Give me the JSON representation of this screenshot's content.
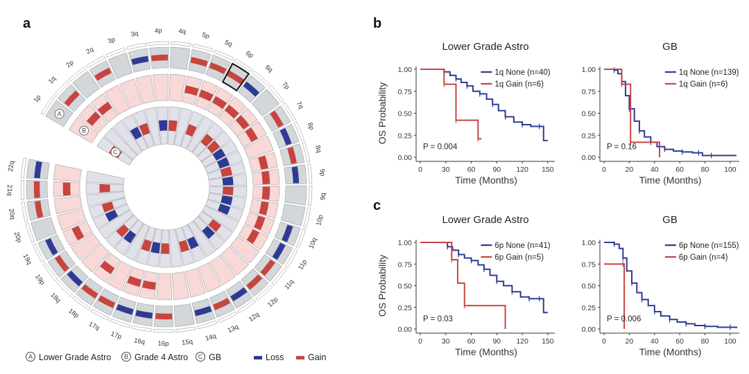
{
  "panels": {
    "a": "a",
    "b": "b",
    "c": "c"
  },
  "colors": {
    "loss": "#2e3a93",
    "gain": "#c7443f",
    "ring_grey": "#d3d7d9",
    "ring_pink": "#f8d9d8",
    "ring_lavender": "#e1e1ea",
    "km_none": "#2e3a93",
    "km_gain": "#c7443f"
  },
  "circos": {
    "ring_markers": [
      {
        "letter": "A",
        "name": "Lower Grade Astro"
      },
      {
        "letter": "B",
        "name": "Grade 4 Astro"
      },
      {
        "letter": "C",
        "name": "GB"
      }
    ],
    "legend": {
      "loss_label": "Loss",
      "gain_label": "Gain"
    },
    "arms": [
      {
        "name": "1p",
        "ring_a": "none",
        "ring_b": "none",
        "ring_c": "gain"
      },
      {
        "name": "1q",
        "ring_a": "gain",
        "ring_b": "gain",
        "ring_c": "none"
      },
      {
        "name": "2p",
        "ring_a": "none",
        "ring_b": "gain",
        "ring_c": "none"
      },
      {
        "name": "2q",
        "ring_a": "gain",
        "ring_b": "none",
        "ring_c": "loss"
      },
      {
        "name": "3p",
        "ring_a": "none",
        "ring_b": "none",
        "ring_c": "gain"
      },
      {
        "name": "3q",
        "ring_a": "loss",
        "ring_b": "none",
        "ring_c": "none"
      },
      {
        "name": "4p",
        "ring_a": "gain",
        "ring_b": "none",
        "ring_c": "loss"
      },
      {
        "name": "4q",
        "ring_a": "none",
        "ring_b": "none",
        "ring_c": "gain"
      },
      {
        "name": "5p",
        "ring_a": "gain",
        "ring_b": "gain",
        "ring_c": "none"
      },
      {
        "name": "5q",
        "ring_a": "gain",
        "ring_b": "gain",
        "ring_c": "gain"
      },
      {
        "name": "6p",
        "ring_a": "gain",
        "ring_b": "gain",
        "ring_c": "none"
      },
      {
        "name": "6q",
        "ring_a": "loss",
        "ring_b": "gain",
        "ring_c": "gain"
      },
      {
        "name": "7p",
        "ring_a": "none",
        "ring_b": "gain",
        "ring_c": "gain"
      },
      {
        "name": "7q",
        "ring_a": "gain",
        "ring_b": "gain",
        "ring_c": "loss"
      },
      {
        "name": "8p",
        "ring_a": "loss",
        "ring_b": "none",
        "ring_c": "loss"
      },
      {
        "name": "8q",
        "ring_a": "gain",
        "ring_b": "gain",
        "ring_c": "gain"
      },
      {
        "name": "9p",
        "ring_a": "loss",
        "ring_b": "gain",
        "ring_c": "loss"
      },
      {
        "name": "9q",
        "ring_a": "none",
        "ring_b": "gain",
        "ring_c": "gain"
      },
      {
        "name": "10p",
        "ring_a": "none",
        "ring_b": "gain",
        "ring_c": "loss"
      },
      {
        "name": "10q",
        "ring_a": "loss",
        "ring_b": "gain",
        "ring_c": "loss"
      },
      {
        "name": "11p",
        "ring_a": "loss",
        "ring_b": "gain",
        "ring_c": "none"
      },
      {
        "name": "11q",
        "ring_a": "gain",
        "ring_b": "none",
        "ring_c": "gain"
      },
      {
        "name": "12p",
        "ring_a": "gain",
        "ring_b": "none",
        "ring_c": "loss"
      },
      {
        "name": "12q",
        "ring_a": "loss",
        "ring_b": "none",
        "ring_c": "none"
      },
      {
        "name": "13q",
        "ring_a": "gain",
        "ring_b": "none",
        "ring_c": "loss"
      },
      {
        "name": "14q",
        "ring_a": "loss",
        "ring_b": "none",
        "ring_c": "gain"
      },
      {
        "name": "15q",
        "ring_a": "none",
        "ring_b": "none",
        "ring_c": "none"
      },
      {
        "name": "16p",
        "ring_a": "gain",
        "ring_b": "none",
        "ring_c": "gain"
      },
      {
        "name": "16q",
        "ring_a": "loss",
        "ring_b": "gain",
        "ring_c": "loss"
      },
      {
        "name": "17p",
        "ring_a": "loss",
        "ring_b": "gain",
        "ring_c": "gain"
      },
      {
        "name": "17q",
        "ring_a": "gain",
        "ring_b": "none",
        "ring_c": "none"
      },
      {
        "name": "18p",
        "ring_a": "gain",
        "ring_b": "gain",
        "ring_c": "loss"
      },
      {
        "name": "18q",
        "ring_a": "loss",
        "ring_b": "none",
        "ring_c": "gain"
      },
      {
        "name": "19p",
        "ring_a": "gain",
        "ring_b": "none",
        "ring_c": "none"
      },
      {
        "name": "19q",
        "ring_a": "loss",
        "ring_b": "gain",
        "ring_c": "loss"
      },
      {
        "name": "20p",
        "ring_a": "none",
        "ring_b": "none",
        "ring_c": "gain"
      },
      {
        "name": "20q",
        "ring_a": "gain",
        "ring_b": "none",
        "ring_c": "none"
      },
      {
        "name": "21q",
        "ring_a": "gain",
        "ring_b": "gain",
        "ring_c": "gain"
      },
      {
        "name": "22q",
        "ring_a": "loss",
        "ring_b": "none",
        "ring_c": "none"
      }
    ]
  },
  "chart_data": [
    {
      "type": "line",
      "panel": "b",
      "title": "Lower Grade Astro",
      "xlabel": "Time (Months)",
      "ylabel": "OS Probability",
      "xlim": [
        0,
        155
      ],
      "ylim": [
        0,
        1
      ],
      "xticks": [
        0,
        30,
        60,
        90,
        120,
        150
      ],
      "yticks": [
        "0.00",
        "0.25",
        "0.50",
        "0.75",
        "1.00"
      ],
      "pvalue": "P = 0.004",
      "series": [
        {
          "name": "1q None (n=40)",
          "color": "#2e3a93",
          "x": [
            0,
            18,
            28,
            35,
            42,
            48,
            55,
            62,
            70,
            78,
            85,
            92,
            100,
            110,
            120,
            130,
            140,
            145,
            150
          ],
          "y": [
            1,
            1,
            0.97,
            0.93,
            0.89,
            0.85,
            0.81,
            0.75,
            0.72,
            0.66,
            0.6,
            0.53,
            0.46,
            0.4,
            0.37,
            0.35,
            0.35,
            0.19,
            0.19
          ]
        },
        {
          "name": "1q Gain (n=6)",
          "color": "#c7443f",
          "x": [
            0,
            20,
            28,
            35,
            42,
            55,
            68,
            72
          ],
          "y": [
            1,
            1,
            0.83,
            0.83,
            0.42,
            0.42,
            0.21,
            0.21
          ]
        }
      ]
    },
    {
      "type": "line",
      "panel": "b",
      "title": "GB",
      "xlabel": "Time (Months)",
      "ylabel": "",
      "xlim": [
        0,
        105
      ],
      "ylim": [
        0,
        1
      ],
      "xticks": [
        0,
        20,
        40,
        60,
        80,
        100
      ],
      "yticks": [
        "0.00",
        "0.25",
        "0.50",
        "0.75",
        "1.00"
      ],
      "pvalue": "P = 0.16",
      "series": [
        {
          "name": "1q None (n=139)",
          "color": "#2e3a93",
          "x": [
            0,
            5,
            8,
            11,
            14,
            17,
            20,
            24,
            28,
            32,
            37,
            42,
            48,
            55,
            62,
            70,
            75,
            78,
            85,
            95,
            105
          ],
          "y": [
            1,
            1,
            0.99,
            0.95,
            0.86,
            0.7,
            0.55,
            0.41,
            0.3,
            0.23,
            0.17,
            0.12,
            0.09,
            0.07,
            0.06,
            0.05,
            0.05,
            0.02,
            0.02,
            0.02,
            0.02
          ]
        },
        {
          "name": "1q Gain (n=6)",
          "color": "#c7443f",
          "x": [
            0,
            10,
            14,
            18,
            21,
            44
          ],
          "y": [
            1,
            1,
            0.83,
            0.83,
            0.17,
            0
          ]
        }
      ]
    },
    {
      "type": "line",
      "panel": "c",
      "title": "Lower Grade Astro",
      "xlabel": "Time (Months)",
      "ylabel": "OS Probability",
      "xlim": [
        0,
        155
      ],
      "ylim": [
        0,
        1
      ],
      "xticks": [
        0,
        30,
        60,
        90,
        120,
        150
      ],
      "yticks": [
        "0.00",
        "0.25",
        "0.50",
        "0.75",
        "1.00"
      ],
      "pvalue": "P = 0.03",
      "series": [
        {
          "name": "6p None (n=41)",
          "color": "#2e3a93",
          "x": [
            0,
            25,
            32,
            38,
            45,
            52,
            60,
            68,
            75,
            82,
            90,
            98,
            108,
            118,
            128,
            135,
            140,
            145,
            150
          ],
          "y": [
            1,
            1,
            0.95,
            0.91,
            0.86,
            0.82,
            0.79,
            0.74,
            0.69,
            0.62,
            0.55,
            0.5,
            0.43,
            0.37,
            0.35,
            0.35,
            0.35,
            0.19,
            0.19
          ]
        },
        {
          "name": "6p Gain (n=5)",
          "color": "#c7443f",
          "x": [
            0,
            33,
            37,
            44,
            52,
            98,
            100
          ],
          "y": [
            1,
            1,
            0.8,
            0.53,
            0.27,
            0.27,
            0
          ]
        }
      ]
    },
    {
      "type": "line",
      "panel": "c",
      "title": "GB",
      "xlabel": "Time (Months)",
      "ylabel": "",
      "xlim": [
        0,
        105
      ],
      "ylim": [
        0,
        1
      ],
      "xticks": [
        0,
        20,
        40,
        60,
        80,
        100
      ],
      "yticks": [
        "0.00",
        "0.25",
        "0.50",
        "0.75",
        "1.00"
      ],
      "pvalue": "P = 0.006",
      "series": [
        {
          "name": "6p None (n=155)",
          "color": "#2e3a93",
          "x": [
            0,
            5,
            8,
            12,
            15,
            18,
            22,
            26,
            30,
            35,
            40,
            45,
            52,
            58,
            65,
            72,
            80,
            90,
            100,
            105
          ],
          "y": [
            1,
            1,
            0.98,
            0.93,
            0.82,
            0.67,
            0.53,
            0.42,
            0.34,
            0.27,
            0.2,
            0.15,
            0.11,
            0.08,
            0.06,
            0.04,
            0.03,
            0.02,
            0.02,
            0.01
          ]
        },
        {
          "name": "6p Gain (n=4)",
          "color": "#c7443f",
          "x": [
            0,
            7,
            15,
            16
          ],
          "y": [
            0.75,
            0.75,
            0.75,
            0
          ]
        }
      ]
    }
  ]
}
